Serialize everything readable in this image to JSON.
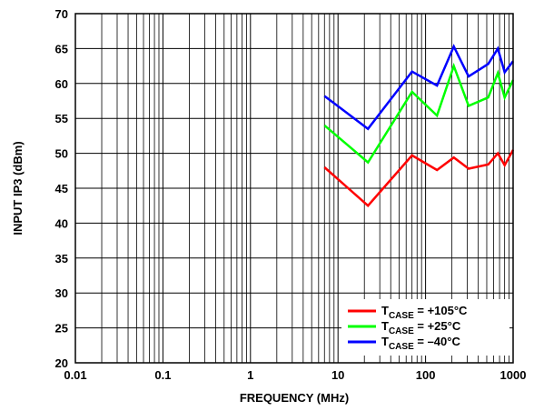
{
  "chart_data": {
    "type": "line",
    "xlabel": "FREQUENCY (MHz)",
    "ylabel": "INPUT IP3 (dBm)",
    "xscale": "log",
    "xlim": [
      0.01,
      1000
    ],
    "ylim": [
      20,
      70
    ],
    "x_ticks": [
      "0.01",
      "0.1",
      "1",
      "10",
      "100",
      "1000"
    ],
    "y_ticks": [
      "20",
      "25",
      "30",
      "35",
      "40",
      "45",
      "50",
      "55",
      "60",
      "65",
      "70"
    ],
    "grid": true,
    "legend_position": "bottom-right",
    "series": [
      {
        "legend_prefix": "T",
        "legend_sub": "CASE",
        "legend_value": " = +105°C",
        "color": "#ff0000",
        "x": [
          7,
          22,
          70,
          135,
          210,
          310,
          520,
          670,
          800,
          1000
        ],
        "y": [
          48,
          42.5,
          49.7,
          47.6,
          49.4,
          47.8,
          48.4,
          50,
          48.3,
          50.5
        ]
      },
      {
        "legend_prefix": "T",
        "legend_sub": "CASE",
        "legend_value": " = +25°C",
        "color": "#00ff00",
        "x": [
          7,
          22,
          70,
          135,
          210,
          310,
          520,
          670,
          800,
          1000
        ],
        "y": [
          54,
          48.7,
          58.8,
          55.4,
          62.5,
          56.8,
          58,
          61.5,
          58,
          60.5
        ]
      },
      {
        "legend_prefix": "T",
        "legend_sub": "CASE",
        "legend_value": " = –40°C",
        "color": "#0000ff",
        "x": [
          7,
          22,
          70,
          135,
          210,
          310,
          520,
          670,
          800,
          1000
        ],
        "y": [
          58.2,
          53.5,
          61.7,
          59.7,
          65.3,
          61,
          62.8,
          65,
          61.6,
          63.2
        ]
      }
    ]
  }
}
